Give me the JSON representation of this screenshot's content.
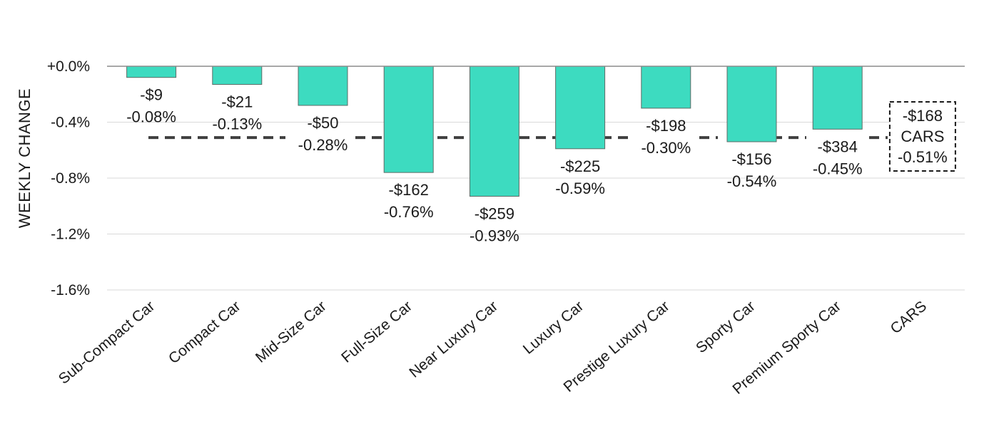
{
  "chart_data": {
    "type": "bar",
    "ylabel": "WEEKLY CHANGE",
    "ylim": [
      -1.6,
      0.0
    ],
    "yticks": [
      0.0,
      -0.4,
      -0.8,
      -1.2,
      -1.6
    ],
    "ytick_labels": [
      "+0.0%",
      "-0.4%",
      "-0.8%",
      "-1.2%",
      "-1.6%"
    ],
    "grid": true,
    "colors": {
      "bar": "#3ddbc0",
      "average_line": "#3f3f3f"
    },
    "categories": [
      "Sub-Compact Car",
      "Compact Car",
      "Mid-Size Car",
      "Full-Size Car",
      "Near Luxury Car",
      "Luxury Car",
      "Prestige Luxury Car",
      "Sporty Car",
      "Premium Sporty Car",
      "CARS"
    ],
    "values": [
      -0.08,
      -0.13,
      -0.28,
      -0.76,
      -0.93,
      -0.59,
      -0.3,
      -0.54,
      -0.45,
      null
    ],
    "dollar_labels": [
      "-$9",
      "-$21",
      "-$50",
      "-$162",
      "-$259",
      "-$225",
      "-$198",
      "-$156",
      "-$384"
    ],
    "percent_labels": [
      "-0.08%",
      "-0.13%",
      "-0.28%",
      "-0.76%",
      "-0.93%",
      "-0.59%",
      "-0.30%",
      "-0.54%",
      "-0.45%"
    ],
    "average": {
      "value": -0.51,
      "label_lines": [
        "-$168",
        "CARS",
        "-0.51%"
      ]
    }
  }
}
